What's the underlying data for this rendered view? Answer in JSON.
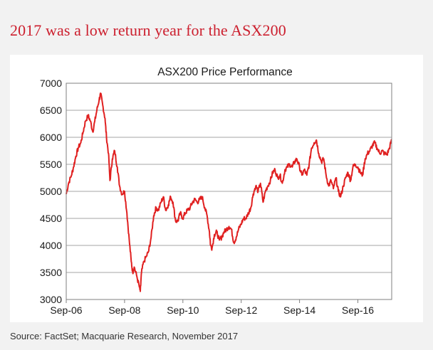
{
  "headline": "2017 was a low return year for the ASX200",
  "source": "Source: FactSet; Macquarie Research, November 2017",
  "colors": {
    "headline": "#cc1f2e",
    "series": "#e02020",
    "grid": "#a6a6a6",
    "panel": "#ffffff",
    "background": "#f2f2f2"
  },
  "chart_data": {
    "type": "line",
    "title": "ASX200 Price Performance",
    "xlabel": "",
    "ylabel": "",
    "x_tick_labels": [
      "Sep-06",
      "Sep-08",
      "Sep-10",
      "Sep-12",
      "Sep-14",
      "Sep-16"
    ],
    "x_tick_years": [
      2006.67,
      2008.67,
      2010.67,
      2012.67,
      2014.67,
      2016.67
    ],
    "xlim": [
      2006.67,
      2017.83
    ],
    "ylim": [
      3000,
      7000
    ],
    "yticks": [
      3000,
      3500,
      4000,
      4500,
      5000,
      5500,
      6000,
      6500,
      7000
    ],
    "grid": "horizontal",
    "legend": "none",
    "series": [
      {
        "name": "",
        "points": [
          [
            2006.67,
            4950
          ],
          [
            2006.75,
            5150
          ],
          [
            2006.85,
            5300
          ],
          [
            2006.92,
            5450
          ],
          [
            2007.0,
            5650
          ],
          [
            2007.08,
            5800
          ],
          [
            2007.17,
            5900
          ],
          [
            2007.25,
            6100
          ],
          [
            2007.33,
            6300
          ],
          [
            2007.42,
            6400
          ],
          [
            2007.5,
            6300
          ],
          [
            2007.58,
            6100
          ],
          [
            2007.65,
            6300
          ],
          [
            2007.72,
            6500
          ],
          [
            2007.8,
            6700
          ],
          [
            2007.85,
            6800
          ],
          [
            2007.92,
            6600
          ],
          [
            2008.0,
            6350
          ],
          [
            2008.05,
            6000
          ],
          [
            2008.12,
            5700
          ],
          [
            2008.17,
            5200
          ],
          [
            2008.25,
            5600
          ],
          [
            2008.33,
            5750
          ],
          [
            2008.42,
            5450
          ],
          [
            2008.5,
            5100
          ],
          [
            2008.58,
            4950
          ],
          [
            2008.67,
            5000
          ],
          [
            2008.75,
            4600
          ],
          [
            2008.83,
            4100
          ],
          [
            2008.9,
            3700
          ],
          [
            2008.95,
            3500
          ],
          [
            2009.0,
            3600
          ],
          [
            2009.08,
            3450
          ],
          [
            2009.17,
            3250
          ],
          [
            2009.21,
            3150
          ],
          [
            2009.25,
            3500
          ],
          [
            2009.33,
            3700
          ],
          [
            2009.42,
            3800
          ],
          [
            2009.5,
            3900
          ],
          [
            2009.58,
            4150
          ],
          [
            2009.67,
            4550
          ],
          [
            2009.75,
            4700
          ],
          [
            2009.83,
            4650
          ],
          [
            2009.92,
            4800
          ],
          [
            2010.0,
            4900
          ],
          [
            2010.08,
            4650
          ],
          [
            2010.17,
            4750
          ],
          [
            2010.25,
            4900
          ],
          [
            2010.33,
            4800
          ],
          [
            2010.42,
            4450
          ],
          [
            2010.5,
            4450
          ],
          [
            2010.58,
            4600
          ],
          [
            2010.67,
            4500
          ],
          [
            2010.75,
            4600
          ],
          [
            2010.83,
            4650
          ],
          [
            2010.92,
            4700
          ],
          [
            2011.0,
            4800
          ],
          [
            2011.08,
            4850
          ],
          [
            2011.17,
            4800
          ],
          [
            2011.25,
            4850
          ],
          [
            2011.33,
            4900
          ],
          [
            2011.42,
            4700
          ],
          [
            2011.5,
            4550
          ],
          [
            2011.58,
            4250
          ],
          [
            2011.62,
            4000
          ],
          [
            2011.67,
            3950
          ],
          [
            2011.75,
            4200
          ],
          [
            2011.83,
            4250
          ],
          [
            2011.92,
            4100
          ],
          [
            2012.0,
            4150
          ],
          [
            2012.08,
            4250
          ],
          [
            2012.17,
            4300
          ],
          [
            2012.25,
            4350
          ],
          [
            2012.33,
            4300
          ],
          [
            2012.42,
            4050
          ],
          [
            2012.5,
            4150
          ],
          [
            2012.58,
            4300
          ],
          [
            2012.67,
            4400
          ],
          [
            2012.75,
            4500
          ],
          [
            2012.83,
            4500
          ],
          [
            2012.92,
            4600
          ],
          [
            2013.0,
            4700
          ],
          [
            2013.08,
            4950
          ],
          [
            2013.17,
            5100
          ],
          [
            2013.25,
            5000
          ],
          [
            2013.33,
            5150
          ],
          [
            2013.42,
            4800
          ],
          [
            2013.5,
            5000
          ],
          [
            2013.58,
            5100
          ],
          [
            2013.67,
            5200
          ],
          [
            2013.75,
            5350
          ],
          [
            2013.83,
            5400
          ],
          [
            2013.92,
            5250
          ],
          [
            2014.0,
            5300
          ],
          [
            2014.08,
            5150
          ],
          [
            2014.17,
            5400
          ],
          [
            2014.25,
            5450
          ],
          [
            2014.33,
            5500
          ],
          [
            2014.42,
            5450
          ],
          [
            2014.5,
            5550
          ],
          [
            2014.58,
            5600
          ],
          [
            2014.67,
            5450
          ],
          [
            2014.75,
            5300
          ],
          [
            2014.83,
            5400
          ],
          [
            2014.92,
            5300
          ],
          [
            2015.0,
            5500
          ],
          [
            2015.08,
            5800
          ],
          [
            2015.17,
            5900
          ],
          [
            2015.25,
            5950
          ],
          [
            2015.33,
            5700
          ],
          [
            2015.42,
            5550
          ],
          [
            2015.5,
            5600
          ],
          [
            2015.58,
            5300
          ],
          [
            2015.67,
            5100
          ],
          [
            2015.75,
            5200
          ],
          [
            2015.83,
            5050
          ],
          [
            2015.92,
            5250
          ],
          [
            2016.0,
            5000
          ],
          [
            2016.08,
            4900
          ],
          [
            2016.17,
            5100
          ],
          [
            2016.25,
            5250
          ],
          [
            2016.33,
            5350
          ],
          [
            2016.42,
            5200
          ],
          [
            2016.5,
            5450
          ],
          [
            2016.58,
            5500
          ],
          [
            2016.67,
            5450
          ],
          [
            2016.75,
            5350
          ],
          [
            2016.83,
            5300
          ],
          [
            2016.92,
            5600
          ],
          [
            2017.0,
            5700
          ],
          [
            2017.08,
            5750
          ],
          [
            2017.17,
            5850
          ],
          [
            2017.25,
            5900
          ],
          [
            2017.33,
            5800
          ],
          [
            2017.42,
            5700
          ],
          [
            2017.5,
            5750
          ],
          [
            2017.58,
            5700
          ],
          [
            2017.67,
            5680
          ],
          [
            2017.75,
            5800
          ],
          [
            2017.83,
            5950
          ]
        ]
      }
    ]
  }
}
